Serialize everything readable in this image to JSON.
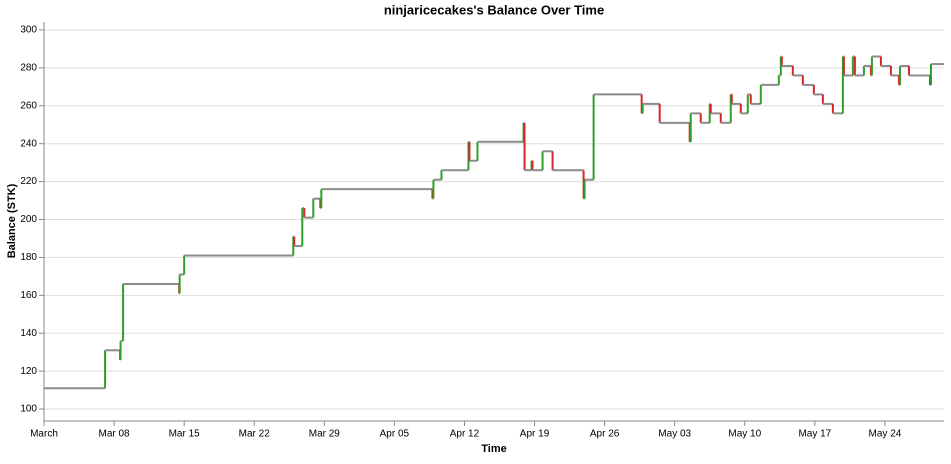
{
  "chart_data": {
    "type": "step",
    "title": "ninjaricecakes's Balance Over Time",
    "x_label": "Time",
    "y_label": "Balance (STK)",
    "color": "#8c8c8c",
    "up_color": "#2ca02c",
    "down_color": "#d62728",
    "grid": true,
    "xlim": [
      0,
      89.9
    ],
    "ylim": [
      93.7,
      304.2
    ],
    "yticks": [
      100,
      120,
      140,
      160,
      180,
      200,
      220,
      240,
      260,
      280,
      300
    ],
    "xticks": [
      {
        "value": 0,
        "label": "March"
      },
      {
        "value": 7,
        "label": "Mar 08"
      },
      {
        "value": 14,
        "label": "Mar 15"
      },
      {
        "value": 21,
        "label": "Mar 22"
      },
      {
        "value": 28,
        "label": "Mar 29"
      },
      {
        "value": 35,
        "label": "Apr 05"
      },
      {
        "value": 42,
        "label": "Apr 12"
      },
      {
        "value": 49,
        "label": "Apr 19"
      },
      {
        "value": 56,
        "label": "Apr 26"
      },
      {
        "value": 63,
        "label": "May 03"
      },
      {
        "value": 70,
        "label": "May 10"
      },
      {
        "value": 77,
        "label": "May 17"
      },
      {
        "value": 84,
        "label": "May 24"
      }
    ],
    "x": [
      0,
      6.1,
      7.6,
      7.65,
      7.9,
      13.5,
      13.55,
      14.0,
      24.9,
      25.0,
      25.8,
      26.0,
      26.9,
      27.6,
      27.7,
      38.8,
      38.9,
      39.7,
      42.4,
      42.5,
      43.3,
      47.9,
      48.0,
      48.7,
      48.8,
      49.8,
      50.8,
      53.9,
      54.0,
      54.9,
      59.7,
      59.8,
      61.5,
      64.5,
      64.6,
      65.6,
      66.5,
      66.6,
      67.6,
      68.6,
      68.7,
      69.6,
      70.3,
      70.6,
      71.6,
      73.4,
      73.6,
      73.7,
      74.8,
      75.8,
      76.9,
      77.8,
      78.8,
      79.8,
      79.9,
      80.8,
      81.0,
      81.9,
      82.6,
      82.7,
      83.6,
      84.6,
      85.4,
      85.5,
      86.4,
      88.5,
      88.6,
      89.9
    ],
    "values": [
      111,
      131,
      126,
      136,
      166,
      161,
      171,
      181,
      191,
      186,
      206,
      201,
      211,
      206,
      216,
      211,
      221,
      226,
      241,
      231,
      241,
      251,
      226,
      231,
      226,
      236,
      226,
      211,
      221,
      266,
      256,
      261,
      251,
      241,
      256,
      251,
      261,
      256,
      251,
      266,
      261,
      256,
      266,
      261,
      271,
      276,
      286,
      281,
      276,
      271,
      266,
      261,
      256,
      286,
      276,
      286,
      276,
      281,
      276,
      286,
      281,
      276,
      271,
      281,
      276,
      271,
      282,
      282
    ]
  }
}
